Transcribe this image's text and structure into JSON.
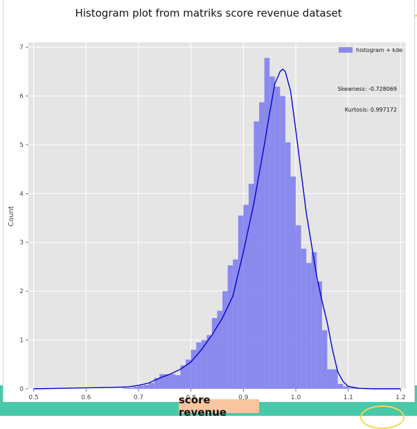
{
  "colors": {
    "background_band": "#48c9a9",
    "accent": "#f5d94a",
    "label_box": "#f7c59f",
    "bar_fill": "#8080ee",
    "kde_line": "#0000cc",
    "plot_bg": "#e5e5e5"
  },
  "annotations": {
    "skewness": "Skewness: -0.728069",
    "kurtosis": "Kurtosis: 0.997172"
  },
  "chart_data": {
    "type": "bar",
    "title": "Histogram plot from matriks score revenue dataset",
    "xlabel": "score revenue",
    "ylabel": "Count",
    "xlim": [
      0.49,
      1.21
    ],
    "ylim": [
      0,
      7.1
    ],
    "xticks": [
      0.5,
      0.6,
      0.7,
      0.8,
      0.9,
      1.0,
      1.1,
      1.2
    ],
    "xtick_labels": [
      "0.5",
      "0.6",
      "0.7",
      "0.8",
      "0.9",
      "1.0",
      "1.1",
      "1.2"
    ],
    "yticks": [
      0,
      1,
      2,
      3,
      4,
      5,
      6,
      7
    ],
    "ytick_labels": [
      "0",
      "1",
      "2",
      "3",
      "4",
      "5",
      "6",
      "7"
    ],
    "grid": true,
    "legend": {
      "position": "top-right",
      "entries": [
        "histogram + kde"
      ]
    },
    "bin_width": 0.01,
    "bins": [
      0.67,
      0.68,
      0.69,
      0.7,
      0.71,
      0.72,
      0.73,
      0.74,
      0.75,
      0.76,
      0.77,
      0.78,
      0.79,
      0.8,
      0.81,
      0.82,
      0.83,
      0.84,
      0.85,
      0.86,
      0.87,
      0.88,
      0.89,
      0.9,
      0.91,
      0.92,
      0.93,
      0.94,
      0.95,
      0.96,
      0.97,
      0.98,
      0.99,
      1.0,
      1.01,
      1.02,
      1.03,
      1.04,
      1.05,
      1.06,
      1.07,
      1.08,
      1.09,
      1.1,
      1.11
    ],
    "counts": [
      0.02,
      0.02,
      0.04,
      0.06,
      0.08,
      0.12,
      0.22,
      0.3,
      0.3,
      0.3,
      0.28,
      0.48,
      0.6,
      0.8,
      0.95,
      1.0,
      1.1,
      1.45,
      1.6,
      2.0,
      2.53,
      2.65,
      3.55,
      3.77,
      4.2,
      5.48,
      5.87,
      6.78,
      6.4,
      6.19,
      6.0,
      5.05,
      4.35,
      3.35,
      2.87,
      2.58,
      2.8,
      2.2,
      1.2,
      0.4,
      0.4,
      0.1,
      0.05,
      0.02,
      0.01
    ],
    "series": [
      {
        "name": "histogram + kde",
        "x": [
          0.5,
          0.55,
          0.6,
          0.65,
          0.68,
          0.7,
          0.72,
          0.74,
          0.76,
          0.78,
          0.8,
          0.82,
          0.84,
          0.86,
          0.88,
          0.9,
          0.92,
          0.94,
          0.95,
          0.96,
          0.97,
          0.975,
          0.98,
          0.99,
          1.0,
          1.02,
          1.04,
          1.05,
          1.06,
          1.07,
          1.08,
          1.09,
          1.1,
          1.12,
          1.15,
          1.2
        ],
        "y": [
          0.0,
          0.01,
          0.02,
          0.03,
          0.04,
          0.07,
          0.12,
          0.22,
          0.3,
          0.4,
          0.55,
          0.8,
          1.1,
          1.45,
          1.9,
          2.8,
          3.8,
          5.0,
          5.65,
          6.25,
          6.5,
          6.55,
          6.5,
          6.1,
          5.3,
          3.6,
          2.3,
          1.8,
          1.35,
          0.8,
          0.35,
          0.15,
          0.05,
          0.01,
          0.0,
          0.0
        ]
      }
    ]
  }
}
